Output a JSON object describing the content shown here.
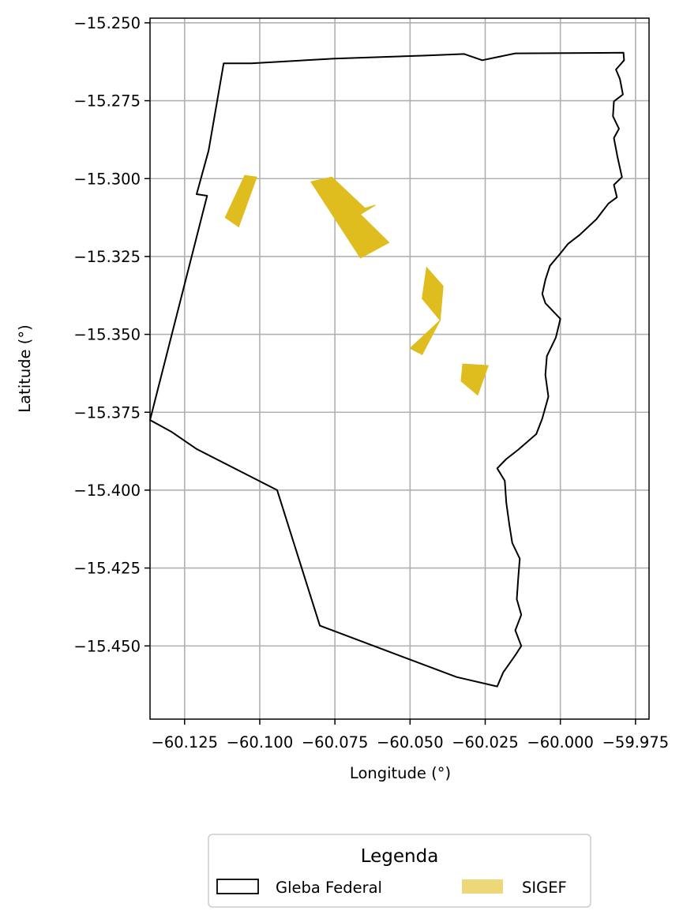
{
  "chart_data": {
    "type": "map",
    "xlabel": "Longitude (°)",
    "ylabel": "Latitude (°)",
    "xlim": [
      -60.1365,
      -59.9705
    ],
    "ylim": [
      -15.4735,
      -15.2485
    ],
    "grid": true,
    "xticks": [
      -60.125,
      -60.1,
      -60.075,
      -60.05,
      -60.025,
      -60.0,
      -59.975
    ],
    "xtick_labels": [
      "−60.125",
      "−60.100",
      "−60.075",
      "−60.050",
      "−60.025",
      "−60.000",
      "−59.975"
    ],
    "yticks": [
      -15.25,
      -15.275,
      -15.3,
      -15.325,
      -15.35,
      -15.375,
      -15.4,
      -15.425,
      -15.45
    ],
    "ytick_labels": [
      "−15.250",
      "−15.275",
      "−15.300",
      "−15.325",
      "−15.350",
      "−15.375",
      "−15.400",
      "−15.425",
      "−15.450"
    ],
    "legend": {
      "title": "Legenda",
      "placement": "below plot, centered",
      "entries": [
        {
          "label": "Gleba Federal",
          "style": "outline",
          "color": "#000000"
        },
        {
          "label": "SIGEF",
          "style": "fill",
          "color": "#dfbd1f",
          "alpha": 0.6
        }
      ]
    },
    "layers": [
      {
        "name": "Gleba Federal",
        "type": "polygon-outline",
        "stroke": "#000000",
        "coordinates": [
          [
            -60.1028,
            -15.263
          ],
          [
            -60.0752,
            -15.2615
          ],
          [
            -60.045,
            -15.2605
          ],
          [
            -60.032,
            -15.26
          ],
          [
            -60.026,
            -15.262
          ],
          [
            -60.015,
            -15.2598
          ],
          [
            -59.979,
            -15.2596
          ],
          [
            -59.9788,
            -15.262
          ],
          [
            -59.9815,
            -15.265
          ],
          [
            -59.9802,
            -15.268
          ],
          [
            -59.9792,
            -15.273
          ],
          [
            -59.9822,
            -15.2752
          ],
          [
            -59.9825,
            -15.28
          ],
          [
            -59.9805,
            -15.284
          ],
          [
            -59.9822,
            -15.287
          ],
          [
            -59.981,
            -15.293
          ],
          [
            -59.9795,
            -15.2995
          ],
          [
            -59.9822,
            -15.302
          ],
          [
            -59.9812,
            -15.306
          ],
          [
            -59.984,
            -15.308
          ],
          [
            -59.988,
            -15.313
          ],
          [
            -59.9935,
            -15.318
          ],
          [
            -59.9975,
            -15.321
          ],
          [
            -60.0,
            -15.324
          ],
          [
            -60.0035,
            -15.328
          ],
          [
            -60.005,
            -15.3325
          ],
          [
            -60.006,
            -15.337
          ],
          [
            -60.005,
            -15.34
          ],
          [
            -60.0,
            -15.345
          ],
          [
            -60.0015,
            -15.351
          ],
          [
            -60.0045,
            -15.357
          ],
          [
            -60.005,
            -15.363
          ],
          [
            -60.004,
            -15.37
          ],
          [
            -60.006,
            -15.377
          ],
          [
            -60.008,
            -15.382
          ],
          [
            -60.014,
            -15.387
          ],
          [
            -60.018,
            -15.39
          ],
          [
            -60.021,
            -15.393
          ],
          [
            -60.0185,
            -15.397
          ],
          [
            -60.018,
            -15.404
          ],
          [
            -60.017,
            -15.411
          ],
          [
            -60.016,
            -15.417
          ],
          [
            -60.0135,
            -15.422
          ],
          [
            -60.014,
            -15.428
          ],
          [
            -60.0145,
            -15.435
          ],
          [
            -60.013,
            -15.44
          ],
          [
            -60.015,
            -15.445
          ],
          [
            -60.013,
            -15.45
          ],
          [
            -60.015,
            -15.453
          ],
          [
            -60.019,
            -15.4585
          ],
          [
            -60.021,
            -15.463
          ],
          [
            -60.0345,
            -15.46
          ],
          [
            -60.08,
            -15.4435
          ],
          [
            -60.0942,
            -15.4
          ],
          [
            -60.121,
            -15.3868
          ],
          [
            -60.1295,
            -15.3812
          ],
          [
            -60.1365,
            -15.3775
          ],
          [
            -60.1175,
            -15.3055
          ],
          [
            -60.121,
            -15.305
          ],
          [
            -60.117,
            -15.291
          ],
          [
            -60.112,
            -15.263
          ],
          [
            -60.1028,
            -15.263
          ]
        ]
      },
      {
        "name": "SIGEF",
        "type": "polygon-fill",
        "fill": "#dfbd1f",
        "features": [
          [
            [
              -60.105,
              -15.299
            ],
            [
              -60.101,
              -15.2995
            ],
            [
              -60.107,
              -15.3155
            ],
            [
              -60.1115,
              -15.3125
            ]
          ],
          [
            [
              -60.083,
              -15.301
            ],
            [
              -60.076,
              -15.2995
            ],
            [
              -60.065,
              -15.3095
            ],
            [
              -60.0615,
              -15.3085
            ],
            [
              -60.0665,
              -15.3115
            ],
            [
              -60.057,
              -15.3205
            ],
            [
              -60.0665,
              -15.3255
            ]
          ],
          [
            [
              -60.0445,
              -15.3285
            ],
            [
              -60.039,
              -15.3345
            ],
            [
              -60.04,
              -15.3455
            ],
            [
              -60.046,
              -15.3385
            ]
          ],
          [
            [
              -60.04,
              -15.3455
            ],
            [
              -60.046,
              -15.3565
            ],
            [
              -60.05,
              -15.3545
            ]
          ],
          [
            [
              -60.0325,
              -15.3595
            ],
            [
              -60.024,
              -15.36
            ],
            [
              -60.0275,
              -15.3695
            ],
            [
              -60.033,
              -15.365
            ]
          ]
        ]
      }
    ]
  }
}
